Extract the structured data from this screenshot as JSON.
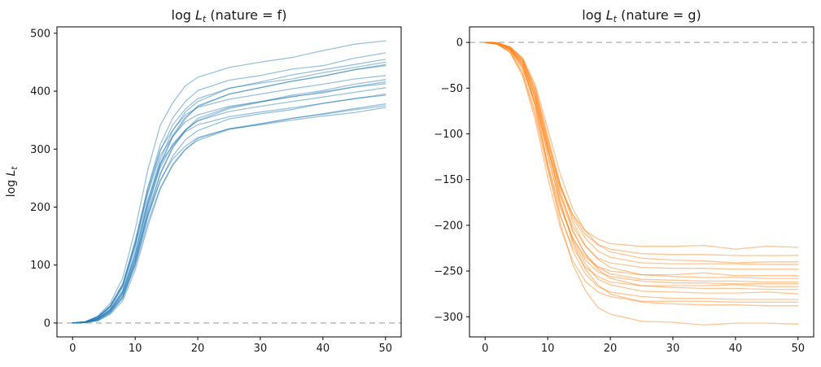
{
  "figure": {
    "background": "#ffffff",
    "axis_color": "#000000",
    "text_color": "#1a1a1a"
  },
  "chart_data": [
    {
      "id": "nature-f",
      "type": "line",
      "title": {
        "text": "log L_t (nature = f)",
        "prefix": "log ",
        "var": "L",
        "sub": "t",
        "rest": " (nature = f)"
      },
      "ylabel": {
        "text": "log L_t",
        "prefix": "log ",
        "var": "L",
        "sub": "t"
      },
      "xlabel": "",
      "grid": false,
      "legend": null,
      "line_color": "#1f77b4",
      "line_alpha": 0.45,
      "zero_line": {
        "y": 0,
        "style": "dashed",
        "color": "#b3b3b3"
      },
      "xlim": [
        -2.5,
        52.5
      ],
      "ylim": [
        -24,
        511
      ],
      "xticks": [
        0,
        10,
        20,
        30,
        40,
        50
      ],
      "yticks": [
        0,
        100,
        200,
        300,
        400,
        500
      ],
      "x": [
        0,
        2,
        4,
        6,
        8,
        10,
        12,
        14,
        16,
        18,
        20,
        25,
        30,
        35,
        40,
        45,
        50
      ],
      "series": [
        [
          0,
          2,
          12,
          34,
          78,
          161,
          263,
          341,
          380,
          409,
          424,
          441,
          450,
          458,
          470,
          481,
          487
        ],
        [
          0,
          2,
          9,
          28,
          65,
          140,
          233,
          308,
          354,
          382,
          401,
          419,
          427,
          438,
          444,
          457,
          466
        ],
        [
          0,
          1,
          7,
          23,
          55,
          118,
          209,
          282,
          332,
          364,
          382,
          405,
          416,
          428,
          437,
          446,
          455
        ],
        [
          0,
          2,
          9,
          27,
          63,
          135,
          225,
          297,
          342,
          369,
          387,
          405,
          414,
          421,
          432,
          441,
          450
        ],
        [
          0,
          1,
          4,
          18,
          45,
          107,
          196,
          272,
          321,
          352,
          375,
          395,
          406,
          417,
          426,
          437,
          446
        ],
        [
          0,
          1,
          7,
          22,
          53,
          115,
          204,
          275,
          324,
          355,
          373,
          395,
          406,
          417,
          426,
          437,
          444
        ],
        [
          0,
          2,
          11,
          30,
          68,
          141,
          231,
          299,
          333,
          359,
          372,
          386,
          395,
          404,
          412,
          421,
          427
        ],
        [
          0,
          1,
          4,
          17,
          42,
          101,
          185,
          256,
          302,
          332,
          353,
          372,
          382,
          393,
          401,
          412,
          420
        ],
        [
          0,
          1,
          6,
          21,
          50,
          108,
          191,
          258,
          304,
          333,
          349,
          370,
          381,
          391,
          397,
          408,
          416
        ],
        [
          0,
          2,
          10,
          29,
          66,
          136,
          223,
          289,
          322,
          347,
          359,
          374,
          382,
          390,
          399,
          407,
          413
        ],
        [
          0,
          2,
          8,
          24,
          57,
          122,
          203,
          268,
          309,
          333,
          349,
          365,
          374,
          382,
          390,
          398,
          406
        ],
        [
          0,
          1,
          6,
          20,
          47,
          103,
          182,
          245,
          288,
          316,
          332,
          352,
          361,
          368,
          379,
          387,
          395
        ],
        [
          0,
          2,
          10,
          28,
          63,
          130,
          212,
          275,
          307,
          330,
          342,
          356,
          364,
          371,
          379,
          387,
          393
        ],
        [
          0,
          1,
          4,
          15,
          38,
          91,
          166,
          231,
          272,
          299,
          318,
          335,
          344,
          353,
          361,
          370,
          378
        ],
        [
          0,
          1,
          6,
          19,
          45,
          98,
          173,
          233,
          274,
          300,
          315,
          334,
          343,
          353,
          360,
          368,
          375
        ],
        [
          0,
          1,
          7,
          22,
          52,
          112,
          186,
          246,
          283,
          305,
          320,
          335,
          342,
          350,
          357,
          363,
          372
        ]
      ]
    },
    {
      "id": "nature-g",
      "type": "line",
      "title": {
        "text": "log L_t (nature = g)",
        "prefix": "log ",
        "var": "L",
        "sub": "t",
        "rest": " (nature = g)"
      },
      "ylabel": null,
      "xlabel": "",
      "grid": false,
      "legend": null,
      "line_color": "#ff7f0e",
      "line_alpha": 0.45,
      "zero_line": {
        "y": 0,
        "style": "dashed",
        "color": "#b3b3b3"
      },
      "xlim": [
        -2.5,
        52.5
      ],
      "ylim": [
        -322,
        17
      ],
      "xticks": [
        0,
        10,
        20,
        30,
        40,
        50
      ],
      "yticks": [
        0,
        -50,
        -100,
        -150,
        -200,
        -250,
        -300
      ],
      "x": [
        0,
        2,
        4,
        6,
        8,
        10,
        12,
        14,
        16,
        18,
        20,
        25,
        30,
        35,
        40,
        45,
        50
      ],
      "series": [
        [
          0,
          -2,
          -9,
          -29,
          -67,
          -116,
          -159,
          -188,
          -206,
          -215,
          -220,
          -223,
          -223,
          -222,
          -226,
          -223,
          -224
        ],
        [
          0,
          -1,
          -7,
          -23,
          -58,
          -110,
          -156,
          -189,
          -210,
          -221,
          -226,
          -231,
          -232,
          -232,
          -233,
          -233,
          -233
        ],
        [
          0,
          0,
          -5,
          -17,
          -46,
          -94,
          -144,
          -182,
          -206,
          -221,
          -229,
          -236,
          -238,
          -239,
          -241,
          -240,
          -240
        ],
        [
          0,
          -1,
          -6,
          -19,
          -53,
          -107,
          -156,
          -192,
          -214,
          -228,
          -235,
          -241,
          -242,
          -242,
          -242,
          -243,
          -243
        ],
        [
          0,
          -1,
          -7,
          -25,
          -62,
          -117,
          -166,
          -201,
          -223,
          -236,
          -241,
          -246,
          -247,
          -247,
          -248,
          -248,
          -248
        ],
        [
          0,
          -2,
          -10,
          -33,
          -76,
          -133,
          -181,
          -214,
          -235,
          -245,
          -250,
          -254,
          -254,
          -252,
          -255,
          -255,
          -255
        ],
        [
          0,
          -1,
          -5,
          -18,
          -49,
          -101,
          -155,
          -196,
          -222,
          -237,
          -246,
          -254,
          -256,
          -257,
          -257,
          -258,
          -258
        ],
        [
          0,
          -1,
          -7,
          -21,
          -58,
          -115,
          -168,
          -207,
          -231,
          -246,
          -253,
          -259,
          -260,
          -261,
          -261,
          -262,
          -262
        ],
        [
          0,
          -1,
          -8,
          -26,
          -66,
          -124,
          -177,
          -214,
          -238,
          -251,
          -256,
          -261,
          -263,
          -263,
          -264,
          -264,
          -264
        ],
        [
          0,
          -2,
          -11,
          -35,
          -80,
          -139,
          -190,
          -224,
          -246,
          -256,
          -262,
          -266,
          -266,
          -266,
          -265,
          -267,
          -267
        ],
        [
          0,
          -1,
          -5,
          -19,
          -51,
          -105,
          -162,
          -205,
          -232,
          -248,
          -258,
          -266,
          -268,
          -269,
          -269,
          -270,
          -270
        ],
        [
          0,
          -1,
          -7,
          -22,
          -61,
          -121,
          -176,
          -217,
          -242,
          -259,
          -265,
          -272,
          -273,
          -274,
          -274,
          -273,
          -275
        ],
        [
          0,
          -1,
          -8,
          -28,
          -70,
          -132,
          -188,
          -228,
          -253,
          -267,
          -273,
          -278,
          -280,
          -280,
          -281,
          -281,
          -281
        ],
        [
          0,
          -2,
          -11,
          -37,
          -85,
          -148,
          -202,
          -239,
          -261,
          -273,
          -278,
          -283,
          -283,
          -283,
          -284,
          -284,
          -284
        ],
        [
          0,
          -1,
          -6,
          -20,
          -55,
          -112,
          -173,
          -219,
          -248,
          -265,
          -275,
          -284,
          -286,
          -287,
          -287,
          -288,
          -288
        ],
        [
          0,
          -1,
          -8,
          -25,
          -68,
          -136,
          -197,
          -243,
          -271,
          -290,
          -297,
          -305,
          -306,
          -309,
          -307,
          -307,
          -308
        ]
      ]
    }
  ]
}
